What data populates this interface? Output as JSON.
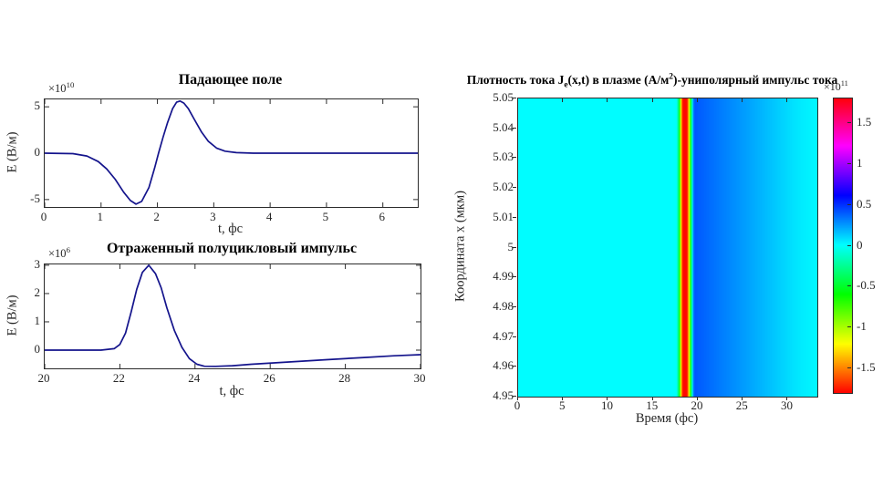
{
  "figure": {
    "background": "#ffffff",
    "line_color": "#14148c",
    "axis_color": "#2b2b2b",
    "text_color": "#262626"
  },
  "chart_data": [
    {
      "type": "line",
      "id": "incident-field",
      "title": "Падающее поле",
      "xlabel": "t, фс",
      "ylabel": "E (В/м)",
      "y_exponent": {
        "base": "×10",
        "exp": "10"
      },
      "xlim": [
        0,
        6.62
      ],
      "ylim": [
        -5.8,
        5.8
      ],
      "xticks": [
        0,
        1,
        2,
        3,
        4,
        5,
        6
      ],
      "yticks": [
        -5,
        0,
        5
      ],
      "grid": false,
      "y_units_scale": "1e10",
      "x": [
        0,
        0.5,
        0.75,
        0.95,
        1.1,
        1.25,
        1.4,
        1.52,
        1.62,
        1.72,
        1.85,
        1.95,
        2.02,
        2.1,
        2.18,
        2.27,
        2.34,
        2.4,
        2.47,
        2.55,
        2.65,
        2.78,
        2.9,
        3.05,
        3.2,
        3.4,
        3.7,
        4.2,
        5,
        6,
        6.62
      ],
      "y": [
        0,
        -0.05,
        -0.3,
        -0.9,
        -1.7,
        -2.8,
        -4.2,
        -5.1,
        -5.5,
        -5.2,
        -3.7,
        -1.6,
        0,
        1.7,
        3.3,
        4.8,
        5.5,
        5.62,
        5.4,
        4.8,
        3.7,
        2.3,
        1.3,
        0.55,
        0.22,
        0.06,
        0,
        0,
        0,
        0,
        0
      ]
    },
    {
      "type": "line",
      "id": "reflected-pulse",
      "title": "Отраженный полуцикловый импульс",
      "xlabel": "t, фс",
      "ylabel": "E (В/м)",
      "y_exponent": {
        "base": "×10",
        "exp": "6"
      },
      "xlim": [
        20,
        30
      ],
      "ylim": [
        -0.645,
        3.03
      ],
      "xticks": [
        20,
        22,
        24,
        26,
        28,
        30
      ],
      "yticks": [
        0,
        1,
        2,
        3
      ],
      "grid": false,
      "y_units_scale": "1e6",
      "x": [
        20,
        21.5,
        21.85,
        22.0,
        22.15,
        22.3,
        22.45,
        22.6,
        22.77,
        22.95,
        23.1,
        23.25,
        23.45,
        23.65,
        23.85,
        24.05,
        24.25,
        24.55,
        25,
        25.5,
        26.5,
        27.5,
        28.5,
        29.3,
        30
      ],
      "y": [
        0,
        0,
        0.05,
        0.2,
        0.6,
        1.35,
        2.15,
        2.75,
        3.0,
        2.7,
        2.2,
        1.5,
        0.7,
        0.1,
        -0.3,
        -0.5,
        -0.57,
        -0.575,
        -0.55,
        -0.5,
        -0.42,
        -0.34,
        -0.26,
        -0.2,
        -0.16
      ]
    },
    {
      "type": "heatmap",
      "id": "current-density-map",
      "title_parts": [
        {
          "text": "Плотность тока J"
        },
        {
          "sub": "e"
        },
        {
          "text": "(x,t) в плазме (А/м"
        },
        {
          "sup": "2"
        },
        {
          "text": ")-униполярный импульс тока"
        }
      ],
      "xlabel": "Время (фс)",
      "ylabel": "Координата x (мкм)",
      "xlim": [
        0,
        33.3
      ],
      "ylim": [
        4.95,
        5.05
      ],
      "xticks": [
        0,
        5,
        10,
        15,
        20,
        25,
        30
      ],
      "ytick_labels": [
        "5.05",
        "5.04",
        "5.03",
        "5.02",
        "5.01",
        "5",
        "4.99",
        "4.98",
        "4.97",
        "4.96",
        "4.95"
      ],
      "colormap": "hsv",
      "clim": [
        -1.8,
        1.8
      ],
      "value_units_scale": "1e11",
      "uniform_in_y": true,
      "colorbar": {
        "exponent": {
          "base": "×10",
          "exp": "11"
        },
        "tick_labels": [
          "1.5",
          "1",
          "0.5",
          "0",
          "-0.5",
          "-1",
          "-1.5"
        ],
        "tick_values": [
          1.5,
          1,
          0.5,
          0,
          -0.5,
          -1,
          -1.5
        ]
      },
      "t": [
        0,
        17.0,
        17.6,
        17.85,
        18.0,
        18.15,
        18.3,
        18.75,
        18.95,
        19.1,
        19.25,
        19.35,
        19.42,
        19.5,
        19.65,
        20,
        21,
        22,
        24,
        26,
        28,
        30,
        31.5,
        33.3
      ],
      "J": [
        0.02,
        0.02,
        0,
        -0.4,
        -0.9,
        -1.5,
        -1.78,
        -1.78,
        -1.3,
        -0.75,
        -0.25,
        0.05,
        0.2,
        0.35,
        0.42,
        0.4,
        0.37,
        0.34,
        0.28,
        0.22,
        0.16,
        0.1,
        0.06,
        0.03
      ]
    }
  ]
}
